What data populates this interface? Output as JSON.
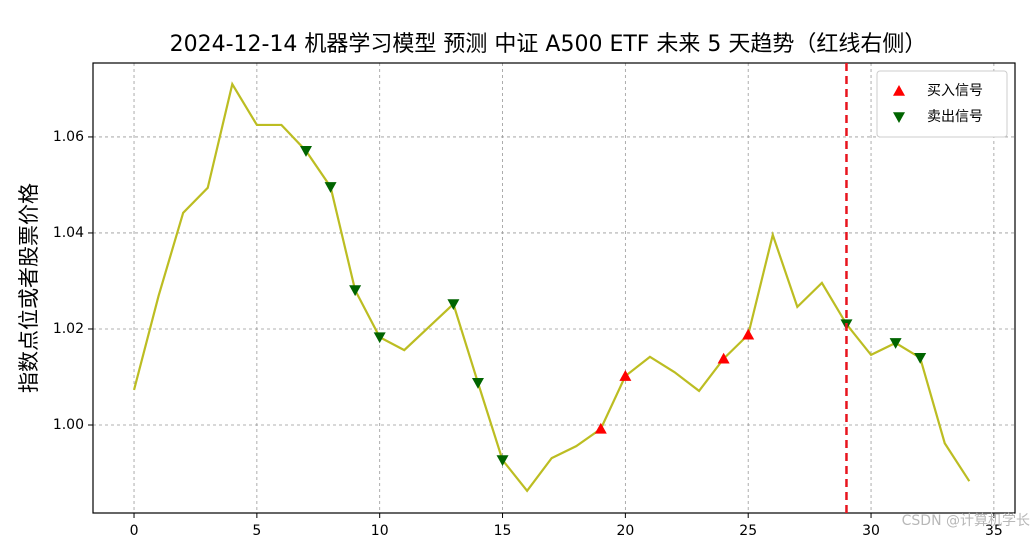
{
  "chart_data": {
    "type": "line",
    "title": "2024-12-14  机器学习模型 预测 中证 A500 ETF 未来 5 天趋势（红线右侧）",
    "y_label": "指数点位或者股票价格",
    "x": [
      0,
      1,
      2,
      3,
      4,
      5,
      6,
      7,
      8,
      9,
      10,
      11,
      12,
      13,
      14,
      15,
      16,
      17,
      18,
      19,
      20,
      21,
      22,
      23,
      24,
      25,
      26,
      27,
      28,
      29,
      30,
      31,
      32,
      33,
      34
    ],
    "series": [
      {
        "color": "#bcbd22",
        "values": [
          1.0073,
          1.0269,
          1.0442,
          1.0494,
          1.071,
          1.0625,
          1.0625,
          1.0571,
          1.0496,
          1.0281,
          1.0183,
          1.0156,
          1.0204,
          1.0252,
          1.0088,
          0.9927,
          0.9863,
          0.9931,
          0.9956,
          0.9992,
          1.0102,
          1.0142,
          1.011,
          1.0071,
          1.0138,
          1.0188,
          1.0396,
          1.0246,
          1.0296,
          1.021,
          1.0146,
          1.0171,
          1.014,
          0.9962,
          0.9883
        ]
      },
      {
        "name": "买入信号",
        "color": "#ff0000",
        "marker": "up",
        "x": [
          19,
          20,
          24,
          25
        ],
        "values": [
          0.9992,
          1.0102,
          1.0138,
          1.0188
        ]
      },
      {
        "name": "卖出信号",
        "color": "#006400",
        "marker": "down",
        "x": [
          7,
          8,
          9,
          10,
          13,
          14,
          15,
          29,
          31,
          32
        ],
        "values": [
          1.0571,
          1.0496,
          1.0281,
          1.0183,
          1.0252,
          1.0088,
          0.9927,
          1.021,
          1.0171,
          1.014
        ]
      }
    ],
    "vline": {
      "x": 29,
      "color": "#e8141e"
    },
    "xlim": [
      -1.67,
      35.86
    ],
    "ylim": [
      0.98167,
      1.0754
    ],
    "xticks": [
      0,
      5,
      10,
      15,
      20,
      25,
      30,
      35
    ],
    "yticks": [
      {
        "value": 1.0,
        "label": "1.00"
      },
      1.02,
      1.04,
      1.06
    ],
    "grid": true,
    "legend": "upper-right",
    "watermark": "CSDN @计算机学长"
  }
}
